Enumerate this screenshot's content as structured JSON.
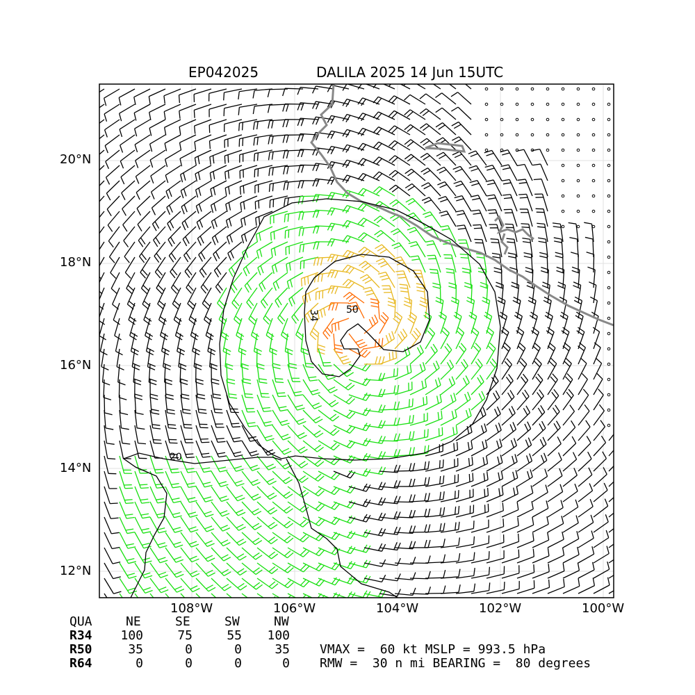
{
  "title": {
    "storm_id": "EP042025",
    "storm_info": "DALILA 2025 14 Jun 15UTC"
  },
  "axes": {
    "lat_ticks": [
      "20°N",
      "18°N",
      "16°N",
      "14°N",
      "12°N"
    ],
    "lon_ticks": [
      "108°W",
      "106°W",
      "104°W",
      "102°W",
      "100°W"
    ],
    "lat_range": [
      11.5,
      21.5
    ],
    "lon_range": [
      -109.8,
      -99.8
    ],
    "grid": true
  },
  "contours": {
    "label_34": "34",
    "label_50": "50",
    "label_20": "20"
  },
  "colors": {
    "calm_black": "#000000",
    "ts_green": "#18e010",
    "strong_gold": "#e8b820",
    "core_orange": "#ff6a00",
    "coast_gray": "#888888"
  },
  "wind_radii": {
    "headers": [
      "QUA",
      "NE",
      "SE",
      "SW",
      "NW"
    ],
    "rows": [
      {
        "label": "R34",
        "values": [
          "100",
          "75",
          "55",
          "100"
        ]
      },
      {
        "label": "R50",
        "values": [
          "35",
          "0",
          "0",
          "35"
        ]
      },
      {
        "label": "R64",
        "values": [
          "0",
          "0",
          "0",
          "0"
        ]
      }
    ]
  },
  "summary": {
    "line1": "VMAX =  60 kt MSLP = 993.5 hPa",
    "line2": "RMW =  30 n mi BEARING =  80 degrees"
  }
}
